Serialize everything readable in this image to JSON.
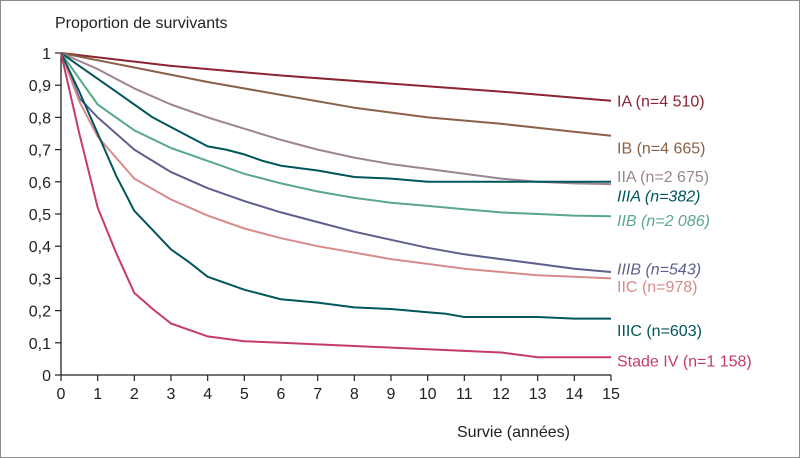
{
  "chart_data": {
    "type": "line",
    "title": "",
    "ylabel": "Proportion de survivants",
    "xlabel": "Survie (années)",
    "xlim": [
      0,
      15
    ],
    "ylim": [
      0,
      1
    ],
    "x_ticks": [
      "0",
      "1",
      "2",
      "3",
      "4",
      "5",
      "6",
      "7",
      "8",
      "9",
      "10",
      "11",
      "12",
      "13",
      "14",
      "15"
    ],
    "y_ticks": [
      "0",
      "0,1",
      "0,2",
      "0,3",
      "0,4",
      "0,5",
      "0,6",
      "0,7",
      "0,8",
      "0,9",
      "1"
    ],
    "grid": false,
    "series": [
      {
        "name": "IA (n=4 510)",
        "color": "#8b2332",
        "italic": false,
        "label_y": 0.852,
        "points": [
          [
            0,
            1
          ],
          [
            3,
            0.96
          ],
          [
            6,
            0.93
          ],
          [
            9,
            0.905
          ],
          [
            12,
            0.88
          ],
          [
            15,
            0.852
          ]
        ]
      },
      {
        "name": "IB (n=4 665)",
        "color": "#8b6048",
        "italic": false,
        "label_y": 0.707,
        "points": [
          [
            0,
            1
          ],
          [
            2,
            0.955
          ],
          [
            4,
            0.91
          ],
          [
            6,
            0.87
          ],
          [
            8,
            0.83
          ],
          [
            10,
            0.8
          ],
          [
            12,
            0.78
          ],
          [
            15,
            0.743
          ]
        ]
      },
      {
        "name": "IIA (n=2 675)",
        "color": "#9d8495",
        "italic": false,
        "label_y": 0.618,
        "points": [
          [
            0,
            1
          ],
          [
            1,
            0.95
          ],
          [
            2,
            0.89
          ],
          [
            3,
            0.84
          ],
          [
            4,
            0.8
          ],
          [
            5,
            0.765
          ],
          [
            6,
            0.73
          ],
          [
            7,
            0.7
          ],
          [
            8,
            0.675
          ],
          [
            9,
            0.655
          ],
          [
            10,
            0.64
          ],
          [
            11,
            0.625
          ],
          [
            12,
            0.61
          ],
          [
            13,
            0.6
          ],
          [
            14,
            0.595
          ],
          [
            15,
            0.593
          ]
        ]
      },
      {
        "name": "IIIA (n=382)",
        "color": "#00565a",
        "italic": true,
        "label_y": 0.558,
        "points": [
          [
            0,
            1
          ],
          [
            0.5,
            0.96
          ],
          [
            1,
            0.92
          ],
          [
            1.5,
            0.88
          ],
          [
            2,
            0.84
          ],
          [
            2.5,
            0.8
          ],
          [
            3,
            0.77
          ],
          [
            3.5,
            0.74
          ],
          [
            4,
            0.71
          ],
          [
            4.5,
            0.7
          ],
          [
            5,
            0.685
          ],
          [
            5.5,
            0.665
          ],
          [
            6,
            0.65
          ],
          [
            7,
            0.635
          ],
          [
            8,
            0.615
          ],
          [
            9,
            0.61
          ],
          [
            10,
            0.6
          ],
          [
            11,
            0.6
          ],
          [
            12,
            0.6
          ],
          [
            13,
            0.6
          ],
          [
            14,
            0.6
          ],
          [
            15,
            0.6
          ]
        ]
      },
      {
        "name": "IIB (n=2 086)",
        "color": "#5aa88a",
        "italic": true,
        "label_y": 0.482,
        "points": [
          [
            0,
            1
          ],
          [
            1,
            0.84
          ],
          [
            2,
            0.76
          ],
          [
            3,
            0.705
          ],
          [
            4,
            0.665
          ],
          [
            5,
            0.625
          ],
          [
            6,
            0.595
          ],
          [
            7,
            0.57
          ],
          [
            8,
            0.55
          ],
          [
            9,
            0.535
          ],
          [
            10,
            0.525
          ],
          [
            11,
            0.515
          ],
          [
            12,
            0.505
          ],
          [
            13,
            0.5
          ],
          [
            14,
            0.495
          ],
          [
            15,
            0.493
          ]
        ]
      },
      {
        "name": "IIIB (n=543)",
        "color": "#5d5f8d",
        "italic": true,
        "label_y": 0.33,
        "points": [
          [
            0,
            1
          ],
          [
            0.5,
            0.86
          ],
          [
            1,
            0.8
          ],
          [
            2,
            0.7
          ],
          [
            3,
            0.63
          ],
          [
            4,
            0.58
          ],
          [
            5,
            0.54
          ],
          [
            6,
            0.505
          ],
          [
            7,
            0.475
          ],
          [
            8,
            0.445
          ],
          [
            9,
            0.42
          ],
          [
            10,
            0.395
          ],
          [
            11,
            0.375
          ],
          [
            12,
            0.36
          ],
          [
            13,
            0.345
          ],
          [
            14,
            0.33
          ],
          [
            15,
            0.32
          ]
        ]
      },
      {
        "name": "IIC (n=978)",
        "color": "#d98a8a",
        "italic": false,
        "label_y": 0.277,
        "points": [
          [
            0,
            1
          ],
          [
            0.5,
            0.85
          ],
          [
            1,
            0.74
          ],
          [
            2,
            0.61
          ],
          [
            3,
            0.545
          ],
          [
            4,
            0.495
          ],
          [
            5,
            0.455
          ],
          [
            6,
            0.425
          ],
          [
            7,
            0.4
          ],
          [
            8,
            0.38
          ],
          [
            9,
            0.36
          ],
          [
            10,
            0.345
          ],
          [
            11,
            0.33
          ],
          [
            12,
            0.32
          ],
          [
            13,
            0.31
          ],
          [
            14,
            0.305
          ],
          [
            15,
            0.3
          ]
        ]
      },
      {
        "name": "IIIC (n=603)",
        "color": "#00565a",
        "italic": false,
        "label_y": 0.14,
        "points": [
          [
            0,
            1
          ],
          [
            0.5,
            0.88
          ],
          [
            1,
            0.75
          ],
          [
            1.5,
            0.62
          ],
          [
            2,
            0.51
          ],
          [
            2.5,
            0.45
          ],
          [
            3,
            0.39
          ],
          [
            3.5,
            0.35
          ],
          [
            4,
            0.305
          ],
          [
            4.5,
            0.285
          ],
          [
            5,
            0.265
          ],
          [
            5.5,
            0.25
          ],
          [
            6,
            0.235
          ],
          [
            7,
            0.225
          ],
          [
            8,
            0.21
          ],
          [
            9,
            0.205
          ],
          [
            10,
            0.195
          ],
          [
            10.5,
            0.19
          ],
          [
            11,
            0.18
          ],
          [
            12,
            0.18
          ],
          [
            13,
            0.18
          ],
          [
            14,
            0.175
          ],
          [
            15,
            0.175
          ]
        ]
      },
      {
        "name": "Stade IV (n=1 158)",
        "color": "#c73a6e",
        "italic": false,
        "label_y": 0.045,
        "points": [
          [
            0,
            1
          ],
          [
            0.5,
            0.75
          ],
          [
            1,
            0.52
          ],
          [
            1.5,
            0.38
          ],
          [
            2,
            0.255
          ],
          [
            2.5,
            0.205
          ],
          [
            3,
            0.16
          ],
          [
            3.5,
            0.14
          ],
          [
            4,
            0.12
          ],
          [
            5,
            0.105
          ],
          [
            6,
            0.1
          ],
          [
            7,
            0.095
          ],
          [
            8,
            0.09
          ],
          [
            9,
            0.085
          ],
          [
            10,
            0.08
          ],
          [
            11,
            0.075
          ],
          [
            12,
            0.07
          ],
          [
            13,
            0.055
          ],
          [
            14,
            0.055
          ],
          [
            15,
            0.055
          ]
        ]
      }
    ]
  }
}
